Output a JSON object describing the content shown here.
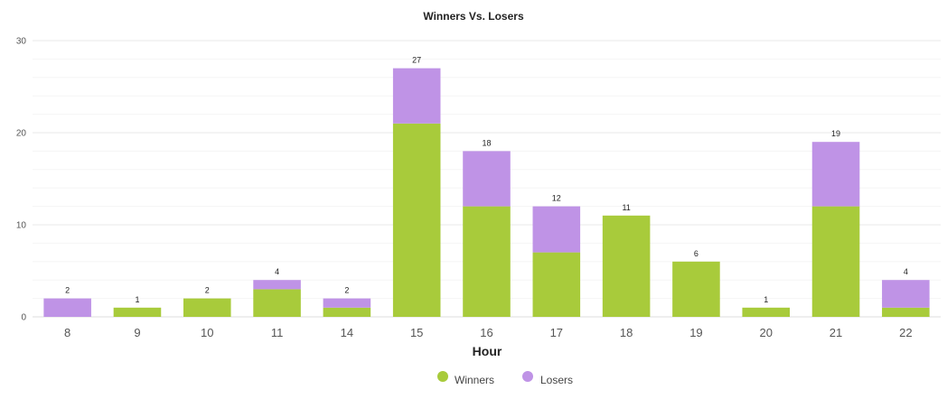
{
  "chart_data": {
    "type": "bar",
    "stacked": true,
    "title": "Winners Vs. Losers",
    "xlabel": "Hour",
    "ylabel": "",
    "ylim": [
      0,
      30
    ],
    "yticks": [
      0,
      10,
      20,
      30
    ],
    "categories": [
      "8",
      "9",
      "10",
      "11",
      "14",
      "15",
      "16",
      "17",
      "18",
      "19",
      "20",
      "21",
      "22"
    ],
    "series": [
      {
        "name": "Winners",
        "color": "#a8cb3b",
        "values": [
          0,
          1,
          2,
          3,
          1,
          21,
          12,
          7,
          11,
          6,
          1,
          12,
          1
        ]
      },
      {
        "name": "Losers",
        "color": "#bf93e6",
        "values": [
          2,
          0,
          0,
          1,
          1,
          6,
          6,
          5,
          0,
          0,
          0,
          7,
          3
        ]
      }
    ],
    "totals": [
      2,
      1,
      2,
      4,
      2,
      27,
      18,
      12,
      11,
      6,
      1,
      19,
      4
    ],
    "legend_position": "bottom-center",
    "grid": true
  }
}
